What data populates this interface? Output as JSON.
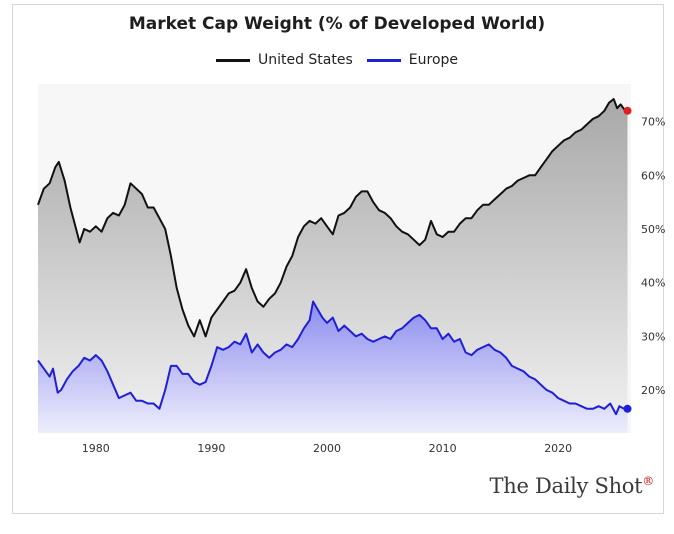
{
  "chart_data": {
    "type": "line",
    "title": "Market Cap Weight (% of Developed World)",
    "xlabel": "",
    "ylabel": "",
    "xlim": [
      1975,
      2026.3
    ],
    "ylim": [
      12,
      77
    ],
    "x_ticks": [
      1980,
      1990,
      2000,
      2010,
      2020
    ],
    "y_ticks": [
      20,
      30,
      40,
      50,
      60,
      70
    ],
    "y_tick_suffix": "%",
    "y_axis_side": "right",
    "grid": false,
    "legend_position": "top-center",
    "series": [
      {
        "name": "United States",
        "color": "#111111",
        "fill_color": "#a8a8a8",
        "end_marker_color": "#e02020",
        "points": [
          [
            1975.0,
            54.5
          ],
          [
            1975.5,
            57.5
          ],
          [
            1976.0,
            58.5
          ],
          [
            1976.5,
            61.5
          ],
          [
            1976.8,
            62.5
          ],
          [
            1977.3,
            59.0
          ],
          [
            1977.8,
            54.0
          ],
          [
            1978.3,
            50.0
          ],
          [
            1978.6,
            47.5
          ],
          [
            1979.0,
            50.0
          ],
          [
            1979.5,
            49.5
          ],
          [
            1980.0,
            50.5
          ],
          [
            1980.5,
            49.5
          ],
          [
            1981.0,
            52.0
          ],
          [
            1981.5,
            53.0
          ],
          [
            1982.0,
            52.5
          ],
          [
            1982.5,
            54.5
          ],
          [
            1983.0,
            58.5
          ],
          [
            1983.5,
            57.5
          ],
          [
            1984.0,
            56.5
          ],
          [
            1984.5,
            54.0
          ],
          [
            1985.0,
            54.0
          ],
          [
            1985.5,
            52.0
          ],
          [
            1986.0,
            50.0
          ],
          [
            1986.5,
            45.0
          ],
          [
            1987.0,
            39.0
          ],
          [
            1987.5,
            35.0
          ],
          [
            1988.0,
            32.0
          ],
          [
            1988.5,
            30.0
          ],
          [
            1989.0,
            33.0
          ],
          [
            1989.5,
            30.0
          ],
          [
            1990.0,
            33.5
          ],
          [
            1990.5,
            35.0
          ],
          [
            1991.0,
            36.5
          ],
          [
            1991.5,
            38.0
          ],
          [
            1992.0,
            38.5
          ],
          [
            1992.5,
            40.0
          ],
          [
            1993.0,
            42.5
          ],
          [
            1993.5,
            39.0
          ],
          [
            1994.0,
            36.5
          ],
          [
            1994.5,
            35.5
          ],
          [
            1995.0,
            37.0
          ],
          [
            1995.5,
            38.0
          ],
          [
            1996.0,
            40.0
          ],
          [
            1996.5,
            43.0
          ],
          [
            1997.0,
            45.0
          ],
          [
            1997.5,
            48.5
          ],
          [
            1998.0,
            50.5
          ],
          [
            1998.5,
            51.5
          ],
          [
            1999.0,
            51.0
          ],
          [
            1999.5,
            52.0
          ],
          [
            2000.0,
            50.5
          ],
          [
            2000.5,
            49.0
          ],
          [
            2001.0,
            52.5
          ],
          [
            2001.5,
            53.0
          ],
          [
            2002.0,
            54.0
          ],
          [
            2002.5,
            56.0
          ],
          [
            2003.0,
            57.0
          ],
          [
            2003.5,
            57.0
          ],
          [
            2004.0,
            55.0
          ],
          [
            2004.5,
            53.5
          ],
          [
            2005.0,
            53.0
          ],
          [
            2005.5,
            52.0
          ],
          [
            2006.0,
            50.5
          ],
          [
            2006.5,
            49.5
          ],
          [
            2007.0,
            49.0
          ],
          [
            2007.5,
            48.0
          ],
          [
            2008.0,
            47.0
          ],
          [
            2008.5,
            48.0
          ],
          [
            2009.0,
            51.5
          ],
          [
            2009.5,
            49.0
          ],
          [
            2010.0,
            48.5
          ],
          [
            2010.5,
            49.5
          ],
          [
            2011.0,
            49.5
          ],
          [
            2011.5,
            51.0
          ],
          [
            2012.0,
            52.0
          ],
          [
            2012.5,
            52.0
          ],
          [
            2013.0,
            53.5
          ],
          [
            2013.5,
            54.5
          ],
          [
            2014.0,
            54.5
          ],
          [
            2014.5,
            55.5
          ],
          [
            2015.0,
            56.5
          ],
          [
            2015.5,
            57.5
          ],
          [
            2016.0,
            58.0
          ],
          [
            2016.5,
            59.0
          ],
          [
            2017.0,
            59.5
          ],
          [
            2017.5,
            60.0
          ],
          [
            2018.0,
            60.0
          ],
          [
            2018.5,
            61.5
          ],
          [
            2019.0,
            63.0
          ],
          [
            2019.5,
            64.5
          ],
          [
            2020.0,
            65.5
          ],
          [
            2020.5,
            66.5
          ],
          [
            2021.0,
            67.0
          ],
          [
            2021.5,
            68.0
          ],
          [
            2022.0,
            68.5
          ],
          [
            2022.5,
            69.5
          ],
          [
            2023.0,
            70.5
          ],
          [
            2023.5,
            71.0
          ],
          [
            2024.0,
            72.0
          ],
          [
            2024.4,
            73.5
          ],
          [
            2024.8,
            74.2
          ],
          [
            2025.1,
            72.5
          ],
          [
            2025.4,
            73.2
          ],
          [
            2025.7,
            72.3
          ],
          [
            2026.0,
            72.0
          ]
        ]
      },
      {
        "name": "Europe",
        "color": "#1f1fd6",
        "fill_color": "#8c8cf0",
        "end_marker_color": "#1f1fd6",
        "points": [
          [
            1975.0,
            25.5
          ],
          [
            1975.5,
            24.0
          ],
          [
            1976.0,
            22.5
          ],
          [
            1976.3,
            24.0
          ],
          [
            1976.7,
            19.5
          ],
          [
            1977.0,
            20.0
          ],
          [
            1977.5,
            22.0
          ],
          [
            1978.0,
            23.5
          ],
          [
            1978.5,
            24.5
          ],
          [
            1979.0,
            26.0
          ],
          [
            1979.5,
            25.5
          ],
          [
            1980.0,
            26.5
          ],
          [
            1980.5,
            25.5
          ],
          [
            1981.0,
            23.5
          ],
          [
            1981.5,
            21.0
          ],
          [
            1982.0,
            18.5
          ],
          [
            1982.5,
            19.0
          ],
          [
            1983.0,
            19.5
          ],
          [
            1983.5,
            18.0
          ],
          [
            1984.0,
            18.0
          ],
          [
            1984.5,
            17.5
          ],
          [
            1985.0,
            17.5
          ],
          [
            1985.5,
            16.5
          ],
          [
            1986.0,
            20.0
          ],
          [
            1986.5,
            24.5
          ],
          [
            1987.0,
            24.5
          ],
          [
            1987.5,
            23.0
          ],
          [
            1988.0,
            23.0
          ],
          [
            1988.5,
            21.5
          ],
          [
            1989.0,
            21.0
          ],
          [
            1989.5,
            21.5
          ],
          [
            1990.0,
            24.5
          ],
          [
            1990.5,
            28.0
          ],
          [
            1991.0,
            27.5
          ],
          [
            1991.5,
            28.0
          ],
          [
            1992.0,
            29.0
          ],
          [
            1992.5,
            28.5
          ],
          [
            1993.0,
            30.5
          ],
          [
            1993.5,
            27.0
          ],
          [
            1994.0,
            28.5
          ],
          [
            1994.5,
            27.0
          ],
          [
            1995.0,
            26.0
          ],
          [
            1995.5,
            27.0
          ],
          [
            1996.0,
            27.5
          ],
          [
            1996.5,
            28.5
          ],
          [
            1997.0,
            28.0
          ],
          [
            1997.5,
            29.5
          ],
          [
            1998.0,
            31.5
          ],
          [
            1998.5,
            33.0
          ],
          [
            1998.8,
            36.5
          ],
          [
            1999.2,
            35.0
          ],
          [
            1999.6,
            33.5
          ],
          [
            2000.0,
            32.5
          ],
          [
            2000.5,
            33.5
          ],
          [
            2001.0,
            31.0
          ],
          [
            2001.5,
            32.0
          ],
          [
            2002.0,
            31.0
          ],
          [
            2002.5,
            30.0
          ],
          [
            2003.0,
            30.5
          ],
          [
            2003.5,
            29.5
          ],
          [
            2004.0,
            29.0
          ],
          [
            2004.5,
            29.5
          ],
          [
            2005.0,
            30.0
          ],
          [
            2005.5,
            29.5
          ],
          [
            2006.0,
            31.0
          ],
          [
            2006.5,
            31.5
          ],
          [
            2007.0,
            32.5
          ],
          [
            2007.5,
            33.5
          ],
          [
            2008.0,
            34.0
          ],
          [
            2008.5,
            33.0
          ],
          [
            2009.0,
            31.5
          ],
          [
            2009.5,
            31.5
          ],
          [
            2010.0,
            29.5
          ],
          [
            2010.5,
            30.5
          ],
          [
            2011.0,
            29.0
          ],
          [
            2011.5,
            29.5
          ],
          [
            2012.0,
            27.0
          ],
          [
            2012.5,
            26.5
          ],
          [
            2013.0,
            27.5
          ],
          [
            2013.5,
            28.0
          ],
          [
            2014.0,
            28.5
          ],
          [
            2014.5,
            27.5
          ],
          [
            2015.0,
            27.0
          ],
          [
            2015.5,
            26.0
          ],
          [
            2016.0,
            24.5
          ],
          [
            2016.5,
            24.0
          ],
          [
            2017.0,
            23.5
          ],
          [
            2017.5,
            22.5
          ],
          [
            2018.0,
            22.0
          ],
          [
            2018.5,
            21.0
          ],
          [
            2019.0,
            20.0
          ],
          [
            2019.5,
            19.5
          ],
          [
            2020.0,
            18.5
          ],
          [
            2020.5,
            18.0
          ],
          [
            2021.0,
            17.5
          ],
          [
            2021.5,
            17.5
          ],
          [
            2022.0,
            17.0
          ],
          [
            2022.5,
            16.5
          ],
          [
            2023.0,
            16.5
          ],
          [
            2023.5,
            17.0
          ],
          [
            2024.0,
            16.5
          ],
          [
            2024.5,
            17.5
          ],
          [
            2025.0,
            15.5
          ],
          [
            2025.3,
            17.0
          ],
          [
            2025.7,
            16.5
          ],
          [
            2026.0,
            16.5
          ]
        ]
      }
    ]
  },
  "branding": {
    "text": "The Daily Shot",
    "mark": "®"
  }
}
